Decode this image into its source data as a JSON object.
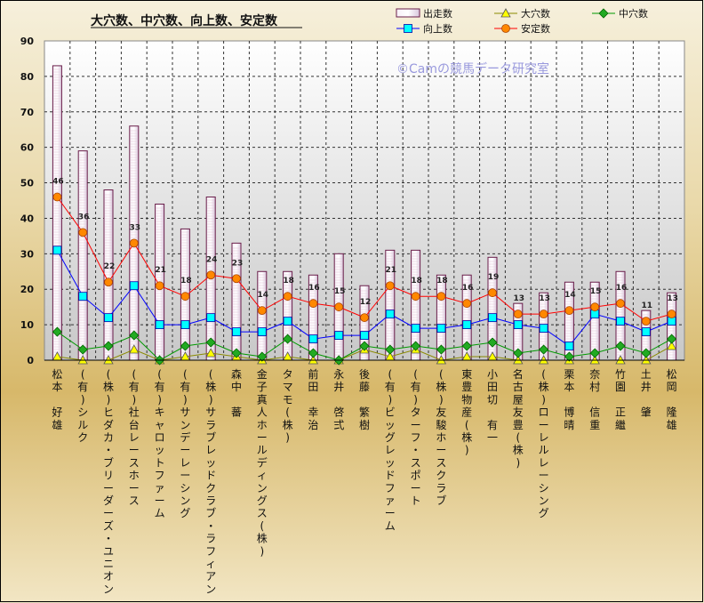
{
  "chart_data": {
    "type": "bar",
    "title": "大穴数、中穴数、向上数、安定数",
    "watermark": "©Camの競馬データ研究室",
    "ylim": [
      0,
      90
    ],
    "yticks": [
      "0",
      "10",
      "20",
      "30",
      "40",
      "50",
      "60",
      "70",
      "80",
      "90"
    ],
    "grid": true,
    "legend_position": "top-right",
    "categories": [
      "松本　好雄",
      "(有)シルク",
      "(株)ヒダカ・ブリーダーズ・ユニオン",
      "(有)社台レースホース",
      "(有)キャロットファーム",
      "(有)サンデーレーシング",
      "(株)サラブレッドクラブ・ラフィアン",
      "森中　蕃",
      "金子真人ホールディングス(株)",
      "タマモ(株)",
      "前田　幸治",
      "永井　啓弍",
      "後藤　繁樹",
      "(有)ビッグレッドファーム",
      "(有)ターフ・スポート",
      "(株)友駿ホースクラブ",
      "東豊物産(株)",
      "小田切　有一",
      "名古屋友豊(株)",
      "(株)ローレルレーシング",
      "栗本　博晴",
      "奈村　信重",
      "竹園　正繼",
      "土井　肇",
      "松岡　隆雄"
    ],
    "series": [
      {
        "name": "出走数",
        "kind": "bar",
        "color": "#ede4f0",
        "values": [
          83,
          59,
          48,
          66,
          44,
          37,
          46,
          33,
          25,
          25,
          24,
          30,
          21,
          31,
          31,
          24,
          24,
          29,
          16,
          19,
          22,
          22,
          25,
          14,
          19
        ]
      },
      {
        "name": "大穴数",
        "kind": "line",
        "color": "#ffff00",
        "values": [
          1,
          0,
          0,
          3,
          0,
          1,
          2,
          1,
          0,
          1,
          0,
          0,
          3,
          1,
          3,
          0,
          1,
          1,
          0,
          0,
          0,
          0,
          0,
          0,
          4
        ]
      },
      {
        "name": "中穴数",
        "kind": "line",
        "color": "#22aa22",
        "values": [
          8,
          3,
          4,
          7,
          0,
          4,
          5,
          2,
          1,
          6,
          2,
          0,
          4,
          3,
          4,
          3,
          4,
          5,
          2,
          3,
          1,
          2,
          4,
          2,
          6
        ]
      },
      {
        "name": "向上数",
        "kind": "line",
        "color": "#00ffff",
        "values": [
          31,
          18,
          12,
          21,
          10,
          10,
          12,
          8,
          8,
          11,
          6,
          7,
          7,
          13,
          9,
          9,
          10,
          12,
          10,
          9,
          4,
          13,
          11,
          8,
          11
        ]
      },
      {
        "name": "安定数",
        "kind": "line",
        "color": "#ff8800",
        "labels": true,
        "values": [
          46,
          36,
          22,
          33,
          21,
          18,
          24,
          23,
          14,
          18,
          16,
          15,
          12,
          21,
          18,
          18,
          16,
          19,
          13,
          13,
          14,
          15,
          16,
          11,
          13
        ]
      }
    ]
  }
}
